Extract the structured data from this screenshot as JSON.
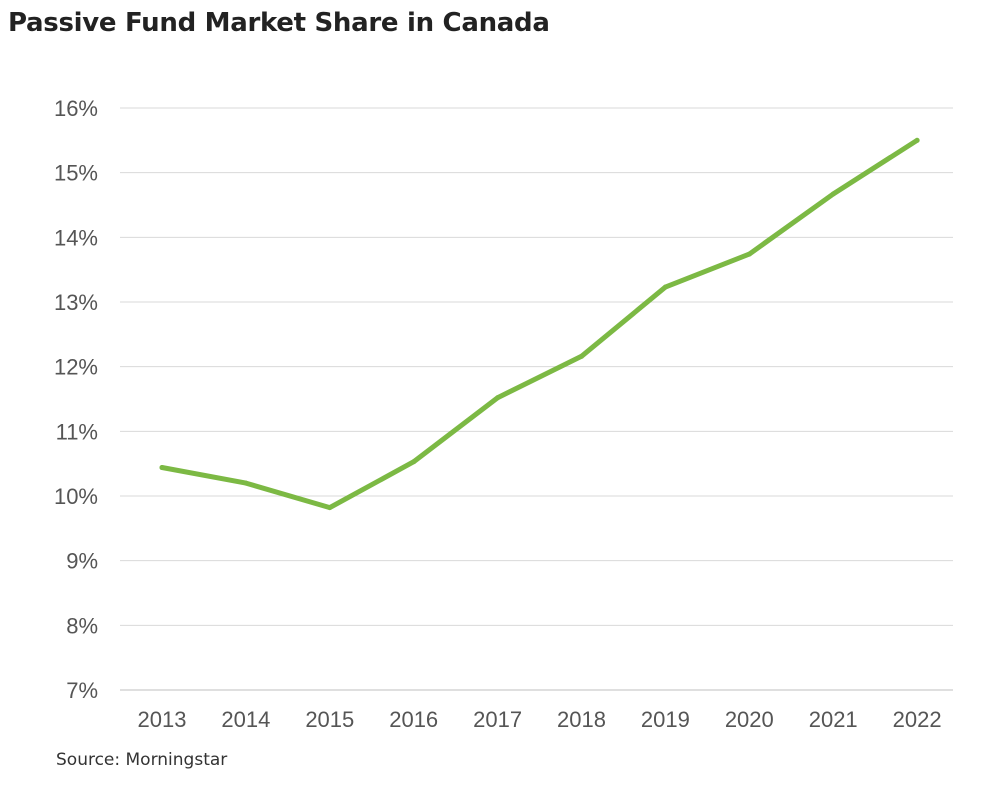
{
  "title": "Passive Fund Market Share in Canada",
  "source": "Source: Morningstar",
  "chart_data": {
    "type": "line",
    "title": "Passive Fund Market Share in Canada",
    "xlabel": "",
    "ylabel": "",
    "x": [
      "2013",
      "2014",
      "2015",
      "2016",
      "2017",
      "2018",
      "2019",
      "2020",
      "2021",
      "2022"
    ],
    "series": [
      {
        "values": [
          10.44,
          10.2,
          9.82,
          10.53,
          11.52,
          12.16,
          13.23,
          13.74,
          14.67,
          15.5
        ]
      }
    ],
    "ylim": [
      7,
      16
    ],
    "yticks": [
      7,
      8,
      9,
      10,
      11,
      12,
      13,
      14,
      15,
      16
    ],
    "ytick_labels": [
      "7%",
      "8%",
      "9%",
      "10%",
      "11%",
      "12%",
      "13%",
      "14%",
      "15%",
      "16%"
    ],
    "line_color": "#7cb944",
    "grid": true,
    "legend": "none"
  }
}
